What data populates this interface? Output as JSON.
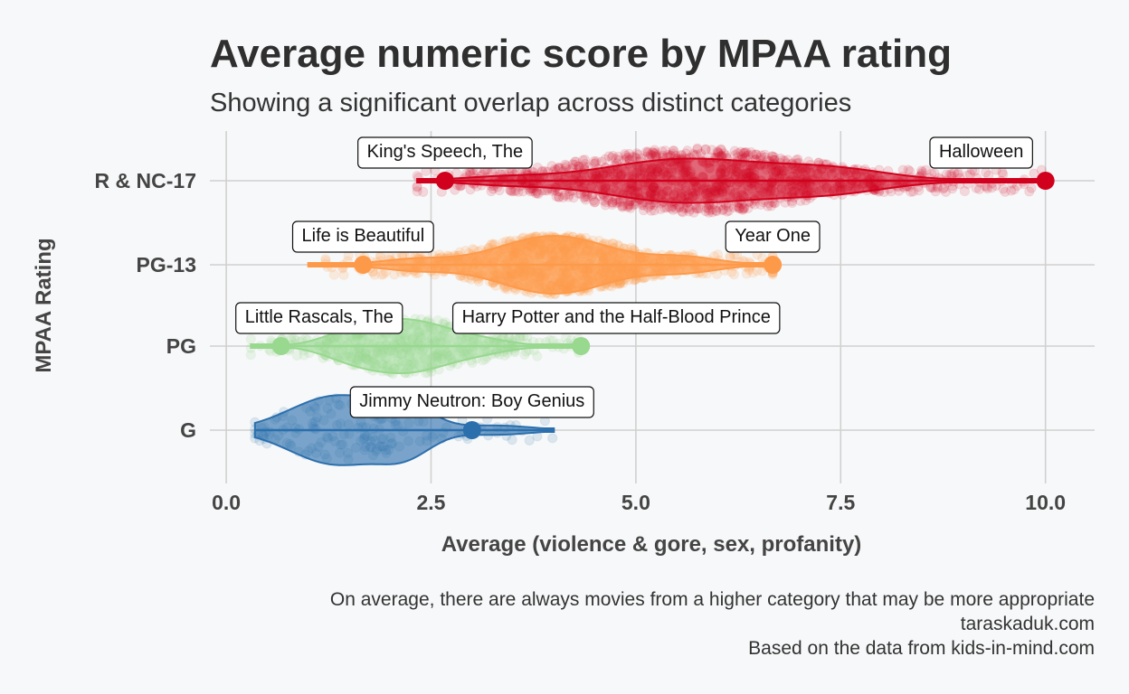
{
  "chart_data": {
    "type": "scatter",
    "title": "Average numeric score by MPAA rating",
    "subtitle": "Showing a significant overlap across distinct categories",
    "xlabel": "Average (violence & gore, sex, profanity)",
    "ylabel": "MPAA Rating",
    "xlim": [
      -0.2,
      10.6
    ],
    "x_ticks": [
      0,
      2.5,
      5,
      7.5,
      10
    ],
    "x_tick_labels": [
      "0.0",
      "2.5",
      "5.0",
      "7.5",
      "10.0"
    ],
    "categories": [
      "G",
      "PG",
      "PG-13",
      "R & NC-17"
    ],
    "grid": true,
    "caption_lines": [
      "On average, there are always movies from a higher category that may be more appropriate",
      "taraskaduk.com",
      "Based on the data from kids-in-mind.com"
    ],
    "series": [
      {
        "category": "G",
        "color": "#2b6fad",
        "range": [
          0.35,
          4.0
        ],
        "mode": 1.4,
        "highlighted": [
          {
            "label": "Jimmy Neutron: Boy Genius",
            "x": 3.0
          }
        ]
      },
      {
        "category": "PG",
        "color": "#98d88f",
        "range": [
          0.3,
          4.3
        ],
        "mode": 2.2,
        "highlighted": [
          {
            "label": "Little Rascals, The",
            "x": 0.67
          },
          {
            "label": "Harry Potter and the Half-Blood Prince",
            "x": 4.33
          }
        ]
      },
      {
        "category": "PG-13",
        "color": "#fd9a4a",
        "range": [
          1.0,
          6.67
        ],
        "mode": 4.0,
        "highlighted": [
          {
            "label": "Life is Beautiful",
            "x": 1.67
          },
          {
            "label": "Year One",
            "x": 6.67
          }
        ]
      },
      {
        "category": "R & NC-17",
        "color": "#d1001c",
        "range": [
          2.33,
          10.0
        ],
        "mode": 5.7,
        "highlighted": [
          {
            "label": "King's Speech, The",
            "x": 2.67
          },
          {
            "label": "Halloween",
            "x": 10.0
          }
        ]
      }
    ]
  }
}
